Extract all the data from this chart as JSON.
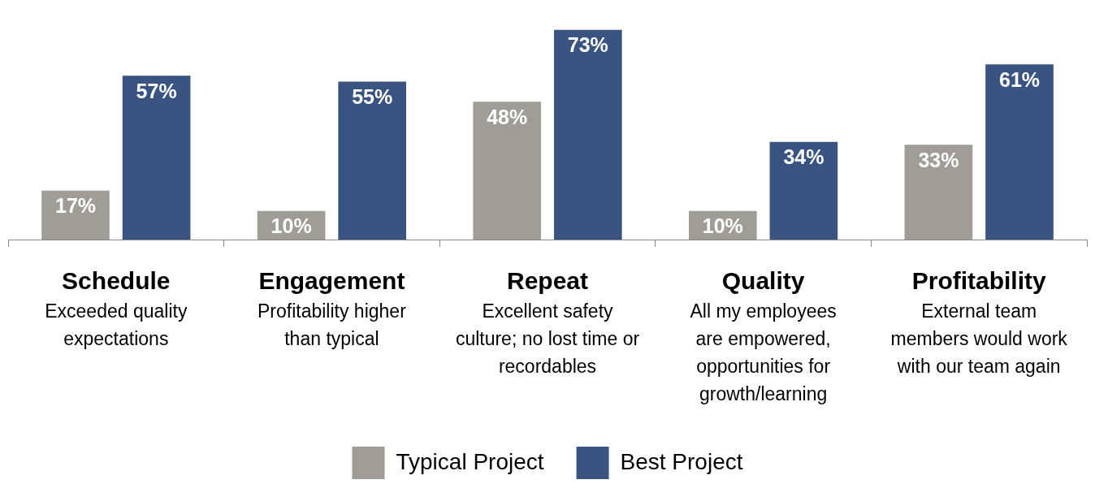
{
  "chart_data": {
    "type": "bar",
    "categories": [
      "Schedule\nExceeded quality\nexpectations",
      "Engagement\nProfitability higher\nthan typical",
      "Repeat\nExcellent safety\nculture; no lost time or\nrecordables",
      "Quality\nAll my employees\nare empowered,\nopportunities for\ngrowth/learning",
      "Profitability\nExternal team\nmembers would work\nwith our team again"
    ],
    "series": [
      {
        "name": "Typical Project",
        "color": "#a09d96",
        "values": [
          17,
          10,
          48,
          10,
          33
        ],
        "value_labels": [
          "17%",
          "10%",
          "48%",
          "10%",
          "33%"
        ]
      },
      {
        "name": "Best Project",
        "color": "#3a5482",
        "values": [
          57,
          55,
          73,
          34,
          61
        ],
        "value_labels": [
          "57%",
          "55%",
          "73%",
          "34%",
          "61%"
        ]
      }
    ],
    "legend": "bottom"
  }
}
